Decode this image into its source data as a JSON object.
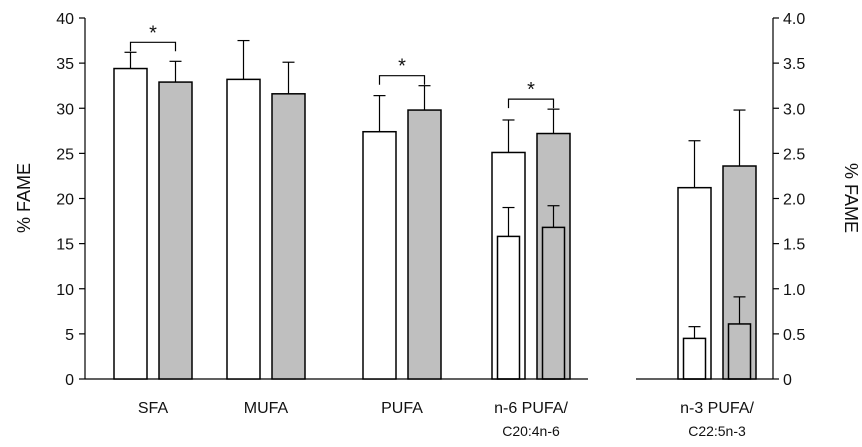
{
  "chart_data": {
    "type": "bar",
    "error_bars": "upper only",
    "ylabel_left": "% FAME",
    "ylabel_right": "% FAME",
    "ylim_left": [
      0,
      40
    ],
    "yticks_left": [
      "0",
      "5",
      "10",
      "15",
      "20",
      "25",
      "30",
      "35",
      "40"
    ],
    "ylim_right": [
      0,
      4.0
    ],
    "yticks_right": [
      "0",
      "0.5",
      "1.0",
      "1.5",
      "2.0",
      "2.5",
      "3.0",
      "3.5",
      "4.0"
    ],
    "significance_marker": "*",
    "colors": {
      "group1": "#ffffff",
      "group2": "#bfbfbf",
      "stroke": "#000000"
    },
    "panels": [
      {
        "axis": "left",
        "groups": [
          {
            "label": "SFA",
            "sublabel": "",
            "bars": [
              {
                "fill": "group1",
                "value": 34.4,
                "error": 1.8
              },
              {
                "fill": "group2",
                "value": 32.9,
                "error": 2.3
              }
            ],
            "significant": true
          },
          {
            "label": "MUFA",
            "sublabel": "",
            "bars": [
              {
                "fill": "group1",
                "value": 33.2,
                "error": 4.3
              },
              {
                "fill": "group2",
                "value": 31.6,
                "error": 3.5
              }
            ],
            "significant": false
          },
          {
            "label": "PUFA",
            "sublabel": "",
            "bars": [
              {
                "fill": "group1",
                "value": 27.4,
                "error": 4.0
              },
              {
                "fill": "group2",
                "value": 29.8,
                "error": 2.7
              }
            ],
            "significant": true
          },
          {
            "label": "n-6 PUFA/",
            "sublabel": "C20:4n-6",
            "bars": [
              {
                "fill": "group1",
                "value": 25.1,
                "error": 3.6
              },
              {
                "fill": "group2",
                "value": 27.2,
                "error": 2.7
              }
            ],
            "inner_bars": [
              {
                "value": 15.8,
                "error": 3.2
              },
              {
                "value": 16.8,
                "error": 2.4
              }
            ],
            "significant": true
          }
        ]
      },
      {
        "axis": "right",
        "groups": [
          {
            "label": "n-3 PUFA/",
            "sublabel": "C22:5n-3",
            "bars": [
              {
                "fill": "group1",
                "value": 2.12,
                "error": 0.52
              },
              {
                "fill": "group2",
                "value": 2.36,
                "error": 0.62
              }
            ],
            "inner_bars": [
              {
                "value": 0.45,
                "error": 0.13
              },
              {
                "value": 0.61,
                "error": 0.3
              }
            ],
            "significant": false
          }
        ]
      }
    ]
  }
}
